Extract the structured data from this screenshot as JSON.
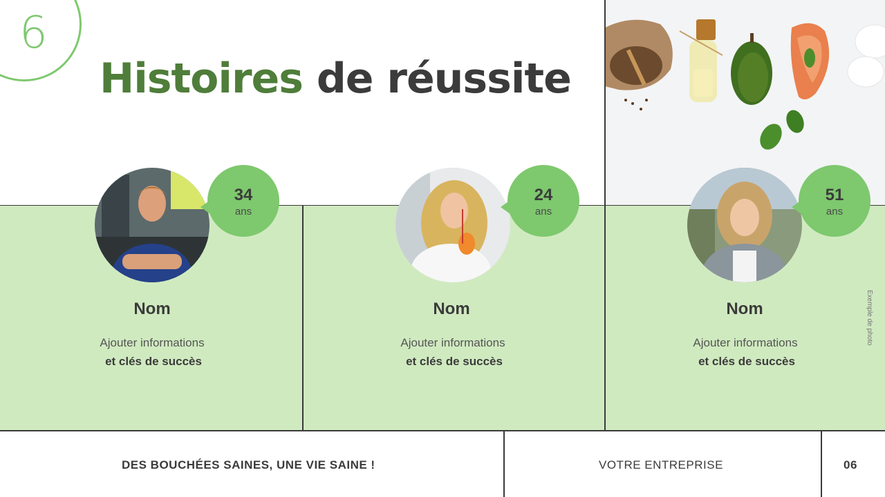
{
  "slide": {
    "section_number": "6",
    "title_part1": "Histoires",
    "title_part2": "de réussite",
    "photo_caption": "Exemple de photo"
  },
  "cards": [
    {
      "age": "34",
      "age_unit": "ans",
      "name": "Nom",
      "info_line1": "Ajouter informations",
      "info_line2": "et clés de succès"
    },
    {
      "age": "24",
      "age_unit": "ans",
      "name": "Nom",
      "info_line1": "Ajouter informations",
      "info_line2": "et clés de succès"
    },
    {
      "age": "51",
      "age_unit": "ans",
      "name": "Nom",
      "info_line1": "Ajouter informations",
      "info_line2": "et clés de succès"
    }
  ],
  "footer": {
    "tagline": "DES BOUCHÉES SAINES, UNE VIE SAINE !",
    "company": "VOTRE ENTREPRISE",
    "page": "06"
  },
  "colors": {
    "accent_green": "#7ec86e",
    "dark_green": "#4f7d3a",
    "band_green": "#d0eac0",
    "text_dark": "#3b3b3b"
  }
}
